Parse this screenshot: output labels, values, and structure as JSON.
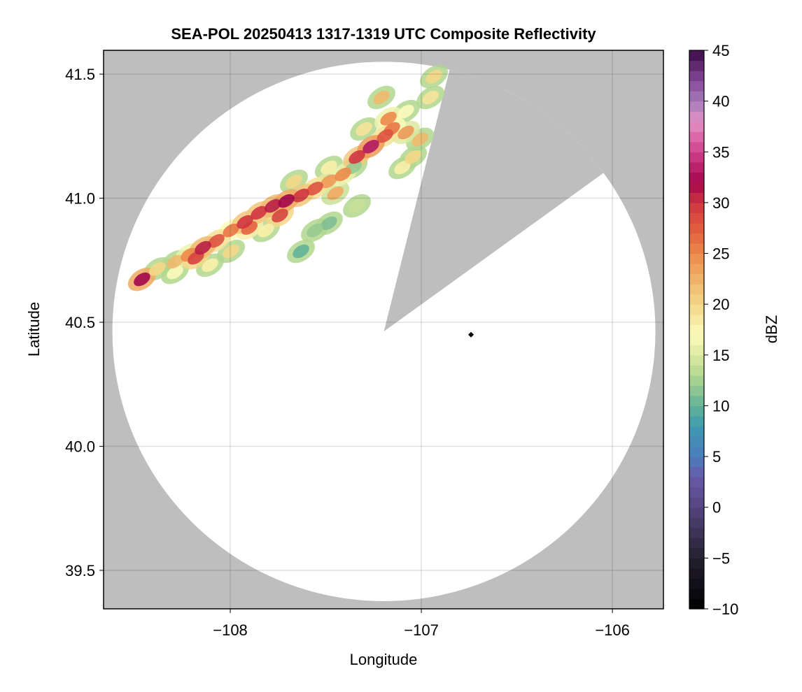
{
  "chart_data": {
    "type": "heatmap",
    "title": "SEA-POL 20250413 1317-1319 UTC Composite Reflectivity",
    "xlabel": "Longitude",
    "ylabel": "Latitude",
    "xlim": [
      -108.663,
      -105.733
    ],
    "ylim": [
      39.345,
      41.596
    ],
    "xticks": [
      -108,
      -107,
      -106
    ],
    "xtick_labels": [
      "−108",
      "−107",
      "−106"
    ],
    "yticks": [
      39.5,
      40.0,
      40.5,
      41.0,
      41.5
    ],
    "ytick_labels": [
      "39.5",
      "40.0",
      "40.5",
      "41.0",
      "41.5"
    ],
    "grid": true,
    "background_color": "#bebebe",
    "coverage": {
      "center_lon": -107.196,
      "center_lat": 40.463,
      "radius_lon_deg": 1.421,
      "radius_lat_deg": 1.087,
      "blanked_sector_bearing_deg": [
        14,
        54
      ]
    },
    "radar_location": {
      "lon": -106.74,
      "lat": 40.45
    },
    "colorbar": {
      "label": "dBZ",
      "range": [
        -10,
        45
      ],
      "ticks": [
        -10,
        -5,
        0,
        5,
        10,
        15,
        20,
        25,
        30,
        35,
        40,
        45
      ],
      "tick_labels": [
        "−10",
        "−5",
        "0",
        "5",
        "10",
        "15",
        "20",
        "25",
        "30",
        "35",
        "40",
        "45"
      ],
      "stops": [
        [
          -10,
          "#000000"
        ],
        [
          -5,
          "#24202f"
        ],
        [
          0,
          "#54457f"
        ],
        [
          3,
          "#6a5aaa"
        ],
        [
          5,
          "#4a7dbd"
        ],
        [
          8,
          "#3e9bb0"
        ],
        [
          10,
          "#62b397"
        ],
        [
          13,
          "#b2d78e"
        ],
        [
          15,
          "#dde9a0"
        ],
        [
          17,
          "#fbfbba"
        ],
        [
          20,
          "#f3d787"
        ],
        [
          23,
          "#eeaa62"
        ],
        [
          25,
          "#ec8a4a"
        ],
        [
          27,
          "#e4623f"
        ],
        [
          30,
          "#cf3541"
        ],
        [
          32,
          "#a3064b"
        ],
        [
          35,
          "#d0408c"
        ],
        [
          38,
          "#e592c6"
        ],
        [
          40,
          "#a37bbb"
        ],
        [
          42,
          "#87499a"
        ],
        [
          45,
          "#3a0a45"
        ]
      ]
    },
    "echoes": [
      [
        -108.462,
        40.673,
        32
      ],
      [
        -108.381,
        40.715,
        20
      ],
      [
        -108.289,
        40.744,
        22
      ],
      [
        -108.216,
        40.772,
        25
      ],
      [
        -108.143,
        40.8,
        31
      ],
      [
        -108.073,
        40.828,
        28
      ],
      [
        -107.996,
        40.87,
        26
      ],
      [
        -107.923,
        40.904,
        30
      ],
      [
        -107.85,
        40.941,
        30
      ],
      [
        -107.777,
        40.969,
        31
      ],
      [
        -107.707,
        40.989,
        32
      ],
      [
        -107.63,
        41.011,
        30
      ],
      [
        -107.557,
        41.039,
        28
      ],
      [
        -107.484,
        41.068,
        24
      ],
      [
        -107.41,
        41.096,
        25
      ],
      [
        -107.337,
        41.166,
        30
      ],
      [
        -107.264,
        41.208,
        33
      ],
      [
        -107.19,
        41.251,
        28
      ],
      [
        -107.172,
        41.321,
        25
      ],
      [
        -107.209,
        41.406,
        22
      ],
      [
        -107.154,
        41.279,
        26
      ],
      [
        -107.081,
        41.265,
        24
      ],
      [
        -107.007,
        41.237,
        22
      ],
      [
        -107.044,
        41.166,
        20
      ],
      [
        -107.099,
        41.124,
        18
      ],
      [
        -106.934,
        41.49,
        20
      ],
      [
        -106.952,
        41.406,
        19
      ],
      [
        -107.355,
        41.124,
        12
      ],
      [
        -107.557,
        40.87,
        12
      ],
      [
        -107.63,
        40.786,
        10
      ],
      [
        -107.484,
        40.899,
        11
      ],
      [
        -107.337,
        40.969,
        14
      ],
      [
        -107.813,
        40.87,
        18
      ],
      [
        -107.996,
        40.786,
        20
      ],
      [
        -108.106,
        40.73,
        18
      ],
      [
        -108.289,
        40.701,
        17
      ],
      [
        -107.667,
        41.068,
        20
      ],
      [
        -107.484,
        41.124,
        18
      ],
      [
        -107.3,
        41.279,
        19
      ],
      [
        -107.081,
        41.349,
        17
      ],
      [
        -107.74,
        40.93,
        29
      ],
      [
        -107.9,
        40.88,
        27
      ],
      [
        -108.18,
        40.76,
        29
      ],
      [
        -107.45,
        41.02,
        23
      ]
    ]
  }
}
